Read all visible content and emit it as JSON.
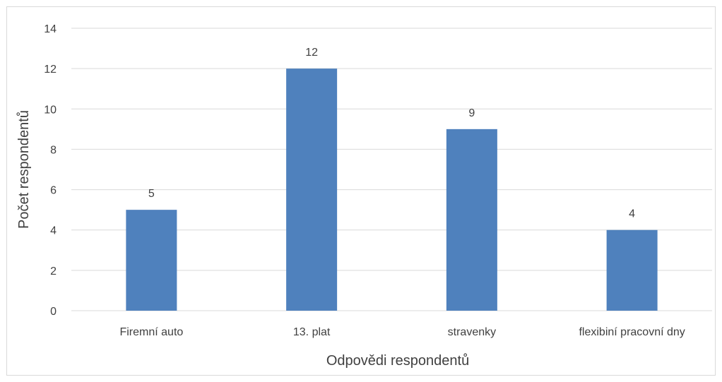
{
  "chart_data": {
    "type": "bar",
    "title": "",
    "xlabel": "Odpovědi respondentů",
    "ylabel": "Počet respondentů",
    "categories": [
      "Firemní auto",
      "13. plat",
      "stravenky",
      "flexibiní pracovní dny"
    ],
    "values": [
      5,
      12,
      9,
      4
    ],
    "ylim": [
      0,
      14
    ],
    "yticks": [
      0,
      2,
      4,
      6,
      8,
      10,
      12,
      14
    ],
    "grid": true,
    "legend": "none",
    "data_labels": true,
    "bar_color": "#4f81bd",
    "grid_color": "#d9d9d9",
    "text_color": "#404040"
  }
}
